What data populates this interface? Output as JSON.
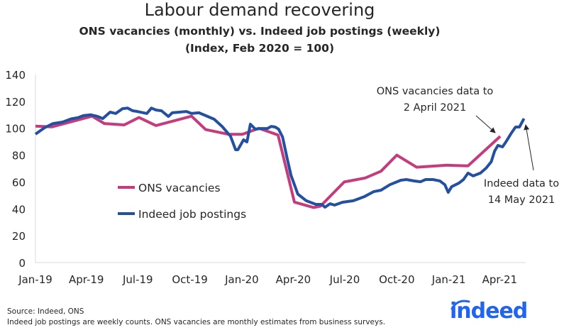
{
  "chart_data": {
    "type": "line",
    "title": "Labour demand recovering",
    "subtitle": [
      "ONS vacancies (monthly) vs. Indeed job postings (weekly)",
      "(Index, Feb 2020 = 100)"
    ],
    "xlabel": "",
    "ylabel": "",
    "xlim": [
      "2019-01-01",
      "2021-05-17"
    ],
    "ylim": [
      0,
      140
    ],
    "y_ticks": [
      "0",
      "20",
      "40",
      "60",
      "80",
      "100",
      "120",
      "140"
    ],
    "x_ticks": [
      {
        "date": "2019-01-01",
        "label": "Jan-19"
      },
      {
        "date": "2019-04-01",
        "label": "Apr-19"
      },
      {
        "date": "2019-07-01",
        "label": "Jul-19"
      },
      {
        "date": "2019-10-01",
        "label": "Oct-19"
      },
      {
        "date": "2020-01-01",
        "label": "Jan-20"
      },
      {
        "date": "2020-04-01",
        "label": "Apr-20"
      },
      {
        "date": "2020-07-01",
        "label": "Jul-20"
      },
      {
        "date": "2020-10-01",
        "label": "Oct-20"
      },
      {
        "date": "2021-01-01",
        "label": "Jan-21"
      },
      {
        "date": "2021-04-01",
        "label": "Apr-21"
      }
    ],
    "grid": false,
    "legend_placement": "center-left",
    "series": [
      {
        "name": "ONS vacancies",
        "color": "#c43c7e",
        "points": [
          [
            "2019-01-01",
            101.6
          ],
          [
            "2019-01-30",
            101
          ],
          [
            "2019-04-11",
            109
          ],
          [
            "2019-05-03",
            103.5
          ],
          [
            "2019-06-07",
            102.5
          ],
          [
            "2019-07-03",
            108
          ],
          [
            "2019-08-02",
            102
          ],
          [
            "2019-10-04",
            109
          ],
          [
            "2019-10-29",
            99
          ],
          [
            "2019-12-08",
            95.5
          ],
          [
            "2020-01-02",
            95.5
          ],
          [
            "2020-01-31",
            100
          ],
          [
            "2020-03-05",
            95
          ],
          [
            "2020-04-03",
            45
          ],
          [
            "2020-05-07",
            41
          ],
          [
            "2020-05-19",
            42
          ],
          [
            "2020-06-30",
            60
          ],
          [
            "2020-08-06",
            63
          ],
          [
            "2020-09-03",
            68
          ],
          [
            "2020-10-01",
            80
          ],
          [
            "2020-11-05",
            71
          ],
          [
            "2020-12-29",
            72.5
          ],
          [
            "2021-02-04",
            72
          ],
          [
            "2021-04-02",
            94
          ]
        ]
      },
      {
        "name": "Indeed job postings",
        "color": "#2350a0",
        "points": [
          [
            "2019-01-01",
            95.6
          ],
          [
            "2019-01-17",
            100.4
          ],
          [
            "2019-02-01",
            103.5
          ],
          [
            "2019-02-18",
            104.6
          ],
          [
            "2019-03-05",
            107
          ],
          [
            "2019-03-17",
            107.8
          ],
          [
            "2019-03-27",
            109.4
          ],
          [
            "2019-04-09",
            110
          ],
          [
            "2019-04-21",
            108.8
          ],
          [
            "2019-04-30",
            107.2
          ],
          [
            "2019-05-13",
            112
          ],
          [
            "2019-05-23",
            111
          ],
          [
            "2019-06-04",
            114.6
          ],
          [
            "2019-06-13",
            115
          ],
          [
            "2019-06-22",
            113
          ],
          [
            "2019-06-29",
            112.6
          ],
          [
            "2019-07-17",
            111
          ],
          [
            "2019-07-25",
            115
          ],
          [
            "2019-08-02",
            113.6
          ],
          [
            "2019-08-12",
            113
          ],
          [
            "2019-08-24",
            108.8
          ],
          [
            "2019-08-31",
            111.5
          ],
          [
            "2019-09-13",
            112
          ],
          [
            "2019-09-25",
            112.5
          ],
          [
            "2019-10-04",
            111
          ],
          [
            "2019-10-17",
            111.5
          ],
          [
            "2019-10-29",
            109.4
          ],
          [
            "2019-11-13",
            106.7
          ],
          [
            "2019-11-27",
            101.4
          ],
          [
            "2019-12-12",
            94
          ],
          [
            "2019-12-21",
            84
          ],
          [
            "2019-12-25",
            84
          ],
          [
            "2020-01-04",
            91.4
          ],
          [
            "2020-01-10",
            89.8
          ],
          [
            "2020-01-16",
            103
          ],
          [
            "2020-01-25",
            99.3
          ],
          [
            "2020-02-03",
            99.8
          ],
          [
            "2020-02-15",
            99.8
          ],
          [
            "2020-02-22",
            101.4
          ],
          [
            "2020-02-29",
            100.9
          ],
          [
            "2020-03-06",
            99.3
          ],
          [
            "2020-03-13",
            93.5
          ],
          [
            "2020-03-21",
            77.7
          ],
          [
            "2020-03-28",
            65
          ],
          [
            "2020-04-09",
            51
          ],
          [
            "2020-04-24",
            46
          ],
          [
            "2020-05-11",
            43.3
          ],
          [
            "2020-05-21",
            43.3
          ],
          [
            "2020-05-27",
            41.2
          ],
          [
            "2020-06-05",
            43.8
          ],
          [
            "2020-06-13",
            42.8
          ],
          [
            "2020-06-27",
            44.9
          ],
          [
            "2020-07-16",
            46
          ],
          [
            "2020-08-04",
            49
          ],
          [
            "2020-08-21",
            52.8
          ],
          [
            "2020-09-03",
            53.9
          ],
          [
            "2020-09-19",
            58
          ],
          [
            "2020-10-08",
            61.3
          ],
          [
            "2020-10-18",
            61.8
          ],
          [
            "2020-10-31",
            60.8
          ],
          [
            "2020-11-12",
            60.2
          ],
          [
            "2020-11-21",
            61.8
          ],
          [
            "2020-12-04",
            61.8
          ],
          [
            "2020-12-16",
            60.8
          ],
          [
            "2020-12-25",
            58
          ],
          [
            "2020-12-31",
            52.3
          ],
          [
            "2021-01-06",
            56.5
          ],
          [
            "2021-01-19",
            59.2
          ],
          [
            "2021-01-27",
            61.8
          ],
          [
            "2021-02-04",
            66.6
          ],
          [
            "2021-02-13",
            64.5
          ],
          [
            "2021-02-26",
            66.6
          ],
          [
            "2021-03-08",
            70.3
          ],
          [
            "2021-03-17",
            75
          ],
          [
            "2021-03-23",
            83
          ],
          [
            "2021-03-29",
            87.2
          ],
          [
            "2021-04-06",
            86.1
          ],
          [
            "2021-04-12",
            89.8
          ],
          [
            "2021-04-21",
            96
          ],
          [
            "2021-04-29",
            100.9
          ],
          [
            "2021-05-06",
            100.9
          ],
          [
            "2021-05-14",
            107.2
          ]
        ]
      }
    ],
    "annotations": [
      {
        "lines": [
          "ONS vacancies data to",
          "2 April 2021"
        ],
        "target": [
          "2021-04-02",
          94
        ]
      },
      {
        "lines": [
          "Indeed data to",
          "14 May 2021"
        ],
        "target": [
          "2021-05-14",
          107.2
        ]
      }
    ]
  },
  "footer": {
    "source": "Source: Indeed, ONS",
    "note": "Indeed job postings are weekly counts. ONS vacancies are monthly estimates from business surveys."
  },
  "logo": {
    "text": "indeed",
    "color": "#2164f3"
  }
}
